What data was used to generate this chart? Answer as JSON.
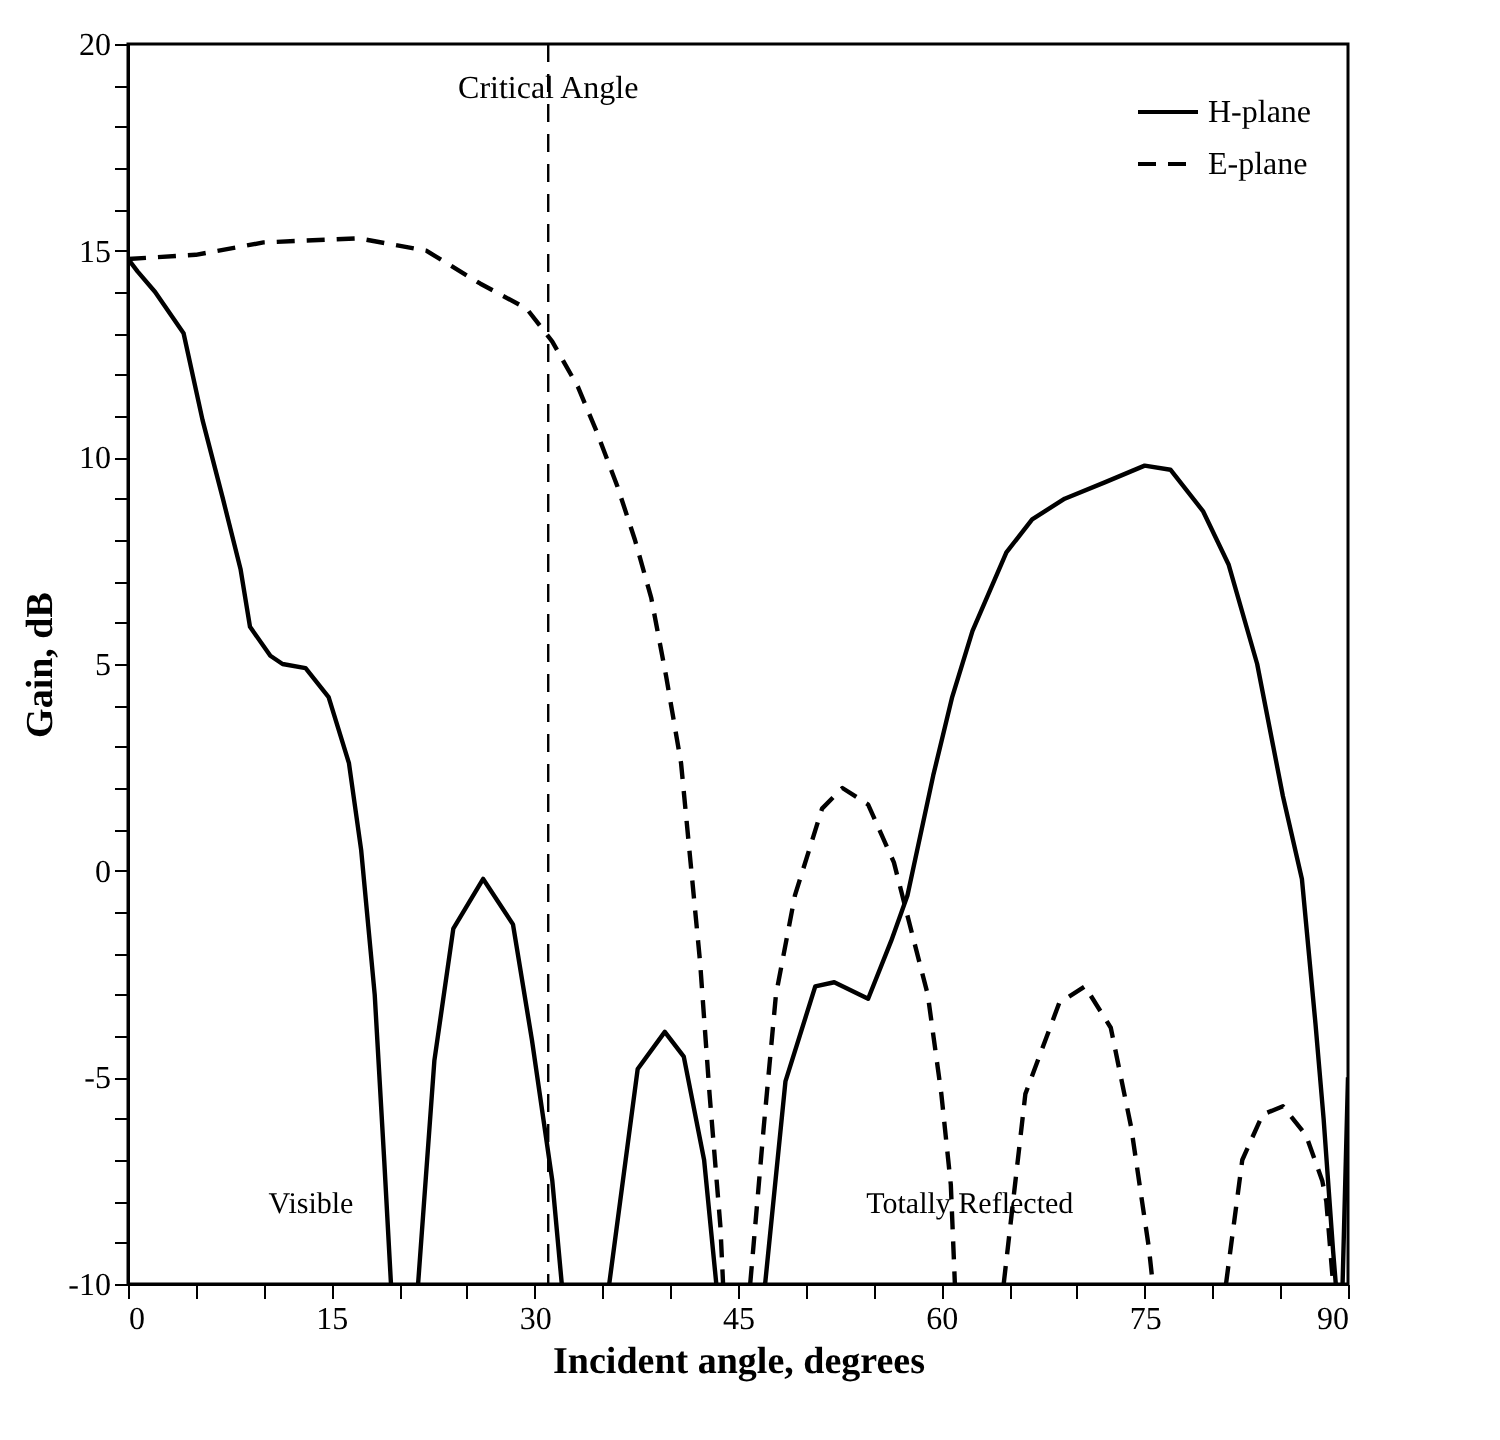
{
  "chart_data": {
    "type": "line",
    "xlabel": "Incident angle, degrees",
    "ylabel": "Gain, dB",
    "xlim": [
      0,
      90
    ],
    "ylim": [
      -10,
      20
    ],
    "xticks": [
      0,
      {
        "value": 5,
        "label": null
      },
      {
        "value": 10,
        "label": null
      },
      15,
      {
        "value": 20,
        "label": null
      },
      {
        "value": 25,
        "label": null
      },
      30,
      {
        "value": 35,
        "label": null
      },
      {
        "value": 40,
        "label": null
      },
      45,
      {
        "value": 50,
        "label": null
      },
      {
        "value": 55,
        "label": null
      },
      60,
      {
        "value": 65,
        "label": null
      },
      {
        "value": 70,
        "label": null
      },
      75,
      {
        "value": 80,
        "label": null
      },
      {
        "value": 85,
        "label": null
      },
      90
    ],
    "yticks": [
      -10,
      {
        "value": -9,
        "label": null
      },
      {
        "value": -8,
        "label": null
      },
      {
        "value": -7,
        "label": null
      },
      {
        "value": -6,
        "label": null
      },
      -5,
      {
        "value": -4,
        "label": null
      },
      {
        "value": -3,
        "label": null
      },
      {
        "value": -2,
        "label": null
      },
      {
        "value": -1,
        "label": null
      },
      0,
      {
        "value": 1,
        "label": null
      },
      {
        "value": 2,
        "label": null
      },
      {
        "value": 3,
        "label": null
      },
      {
        "value": 4,
        "label": null
      },
      5,
      {
        "value": 6,
        "label": null
      },
      {
        "value": 7,
        "label": null
      },
      {
        "value": 8,
        "label": null
      },
      {
        "value": 9,
        "label": null
      },
      10,
      {
        "value": 11,
        "label": null
      },
      {
        "value": 12,
        "label": null
      },
      {
        "value": 13,
        "label": null
      },
      {
        "value": 14,
        "label": null
      },
      15,
      {
        "value": 16,
        "label": null
      },
      {
        "value": 17,
        "label": null
      },
      {
        "value": 18,
        "label": null
      },
      {
        "value": 19,
        "label": null
      },
      20
    ],
    "legend": "top right",
    "series": [
      {
        "name": "H-plane",
        "color": "#000000",
        "line_style": "solid",
        "x": [
          0,
          0.7,
          2,
          4.1,
          5.5,
          7,
          8.3,
          9,
          10.5,
          11.4,
          13.1,
          14.8,
          16.3,
          17.2,
          18.2,
          18.9,
          19.4,
          20.4,
          21.4,
          22.6,
          24,
          26.2,
          28.4,
          29.8,
          31.3,
          32,
          33.7,
          35.5,
          37.6,
          39.6,
          41,
          42.5,
          43.4,
          45.2,
          47,
          48.5,
          50.7,
          52.1,
          54.6,
          56.3,
          57.5,
          59.4,
          60.8,
          62.3,
          64.8,
          66.7,
          69.1,
          72.1,
          75,
          76.9,
          79.3,
          81.2,
          83.3,
          85.2,
          86.6,
          87.6,
          88.2,
          88.9,
          89.1,
          89.3,
          89.6,
          90
        ],
        "values": [
          14.8,
          14.5,
          14,
          13,
          10.9,
          9,
          7.3,
          5.9,
          5.2,
          5,
          4.9,
          4.2,
          2.6,
          0.5,
          -3,
          -7,
          -10,
          null,
          -10,
          -4.6,
          -1.4,
          -0.2,
          -1.3,
          -4.1,
          -7.5,
          -10,
          null,
          -10,
          -4.8,
          -3.9,
          -4.5,
          -7,
          -10,
          null,
          -10,
          -5.1,
          -2.8,
          -2.7,
          -3.1,
          -1.7,
          -0.6,
          2.3,
          4.2,
          5.8,
          7.7,
          8.5,
          9,
          9.4,
          9.8,
          9.7,
          8.7,
          7.4,
          5,
          1.8,
          -0.2,
          -3.7,
          -6,
          -9.2,
          -10,
          null,
          -10,
          -5
        ]
      },
      {
        "name": "E-plane",
        "color": "#000000",
        "line_style": "dashed",
        "x": [
          0,
          5,
          10,
          17,
          22,
          26,
          29.4,
          31.3,
          33.2,
          34.6,
          36.1,
          37.4,
          38.6,
          39.7,
          40.8,
          41.5,
          42.2,
          42.9,
          43.7,
          43.9,
          44.9,
          45.9,
          46.9,
          47.8,
          49.2,
          51.2,
          52.7,
          54.6,
          56.5,
          57.9,
          59,
          60,
          60.7,
          61,
          62.8,
          64.6,
          66.2,
          68.7,
          70.6,
          72.5,
          74,
          75.3,
          75.6,
          78.3,
          81,
          82.2,
          83.7,
          85.2,
          86.9,
          88.1,
          88.4,
          88.9
        ],
        "values": [
          14.8,
          14.9,
          15.2,
          15.3,
          15,
          14.2,
          13.6,
          12.8,
          11.7,
          10.6,
          9.3,
          8,
          6.6,
          4.7,
          2.6,
          0.2,
          -2.2,
          -5.4,
          -8.6,
          -10,
          null,
          -10,
          -6.2,
          -3,
          -0.6,
          1.5,
          2,
          1.6,
          0.2,
          -1.6,
          -3,
          -5.4,
          -7.6,
          -10,
          null,
          -10,
          -5.4,
          -3.2,
          -2.8,
          -3.8,
          -6.2,
          -9.1,
          -10,
          null,
          -10,
          -7,
          -5.9,
          -5.7,
          -6.4,
          -7.5,
          -8,
          -10
        ]
      }
    ],
    "ref_lines": [
      {
        "axis": "x",
        "value": 31,
        "label": "Critical Angle",
        "line_style": "dashed"
      }
    ],
    "annotations": [
      "Visible",
      "Totally Reflected"
    ]
  }
}
